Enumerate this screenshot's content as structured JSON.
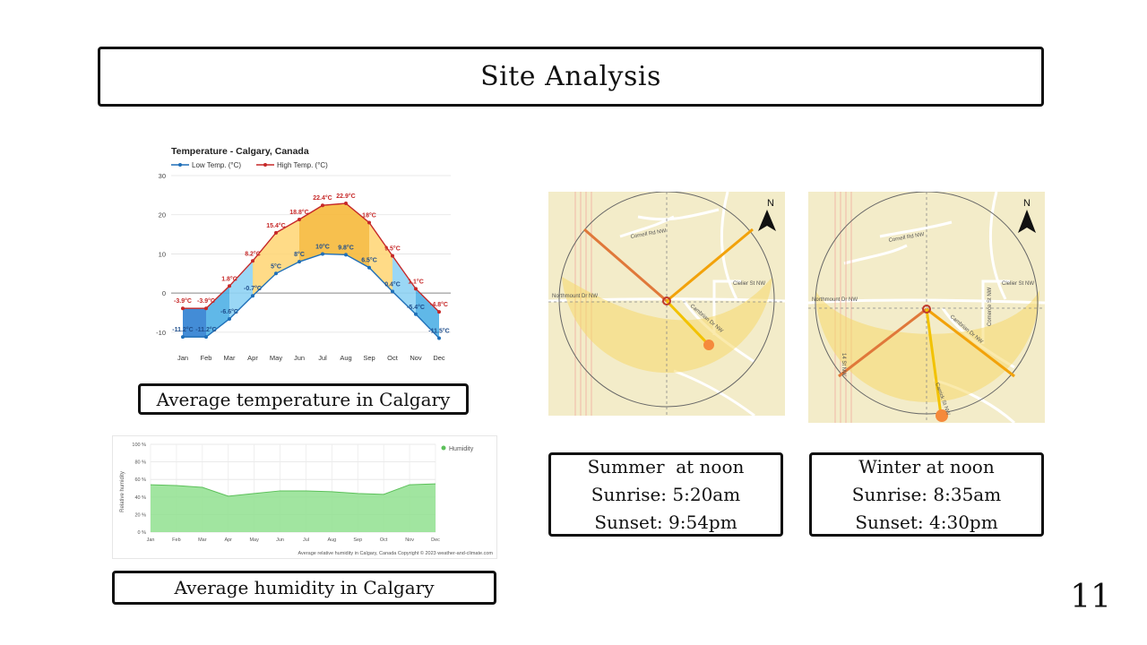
{
  "slide": {
    "title": "Site Analysis",
    "page_number": "11"
  },
  "captions": {
    "temperature": "Average temperature in Calgary",
    "humidity": "Average humidity in Calgary"
  },
  "summer": {
    "line1": "Summer  at noon",
    "line2": "Sunrise: 5:20am",
    "line3": "Sunset: 9:54pm"
  },
  "winter": {
    "line1": "Winter at noon",
    "line2": "Sunrise: 8:35am",
    "line3": "Sunset: 4:30pm"
  },
  "maps": {
    "north_label": "N",
    "streets": [
      "Northmount Dr NW",
      "Cambrian Dr NW",
      "Clelier St NW",
      "Comerce St NW",
      "Cornell Rd NW",
      "Carrick St NW",
      "14 St NW"
    ]
  },
  "chart_data": [
    {
      "type": "line",
      "title": "Temperature - Calgary, Canada",
      "categories": [
        "Jan",
        "Feb",
        "Mar",
        "Apr",
        "May",
        "Jun",
        "Jul",
        "Aug",
        "Sep",
        "Oct",
        "Nov",
        "Dec"
      ],
      "series": [
        {
          "name": "Low Temp. (°C)",
          "color": "#1f6fb8",
          "values": [
            -11.2,
            -11.2,
            -6.6,
            -0.7,
            5,
            8,
            10,
            9.8,
            6.5,
            0.4,
            -5.4,
            -11.5
          ],
          "labels": [
            "-11.2°C",
            "-11.2°C",
            "-6.6°C",
            "-0.7°C",
            "5°C",
            "8°C",
            "10°C",
            "9.8°C",
            "6.5°C",
            "0.4°C",
            "-5.4°C",
            "-11.5°C"
          ]
        },
        {
          "name": "High Temp. (°C)",
          "color": "#c62828",
          "values": [
            -3.9,
            -3.9,
            1.8,
            8.2,
            15.4,
            18.8,
            22.4,
            22.9,
            18,
            9.5,
            1.1,
            -4.8
          ],
          "labels": [
            "-3.9°C",
            "-3.9°C",
            "1.8°C",
            "8.2°C",
            "15.4°C",
            "18.8°C",
            "22.4°C",
            "22.9°C",
            "18°C",
            "9.5°C",
            "1.1°C",
            "-4.8°C"
          ]
        }
      ],
      "yticks": [
        30,
        20,
        10,
        0,
        -10
      ],
      "ylim": [
        -13,
        30
      ],
      "grid": true,
      "legend": "top-left"
    },
    {
      "type": "area",
      "title": "",
      "categories": [
        "Jan",
        "Feb",
        "Mar",
        "Apr",
        "May",
        "Jun",
        "Jul",
        "Aug",
        "Sep",
        "Oct",
        "Nov",
        "Dec"
      ],
      "series": [
        {
          "name": "Humidity",
          "color": "#90e08f",
          "values": [
            54,
            53,
            51,
            41,
            44,
            47,
            47,
            46,
            44,
            43,
            54,
            55
          ]
        }
      ],
      "yticks": [
        "100 %",
        "80 %",
        "60 %",
        "40 %",
        "20 %",
        "0 %"
      ],
      "ylabel": "Relative humidity",
      "ylim": [
        0,
        100
      ],
      "grid": true,
      "legend": "top-right",
      "footer": "Average relative humidity in Calgary, Canada   Copyright © 2023  weather-and-climate.com"
    }
  ]
}
